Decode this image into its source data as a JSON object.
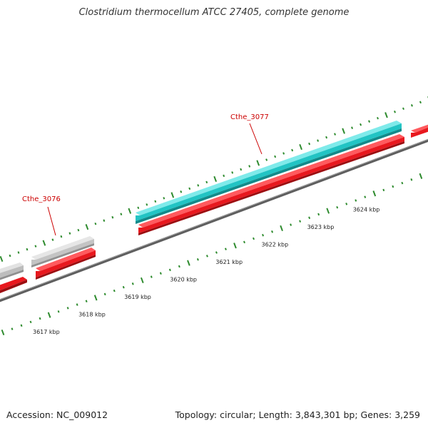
{
  "header": {
    "title": "Clostridium thermocellum ATCC 27405, complete genome"
  },
  "footer": {
    "accession": "Accession: NC_009012",
    "meta": "Topology: circular; Length: 3,843,301 bp; Genes: 3,259"
  },
  "colors": {
    "backbone": "#7f7f7f",
    "cds_forward": "#e8181e",
    "gene_forward": "#c8c8c8",
    "gene_highlight": "#22c4c4",
    "tick_green": "#2e8b2e",
    "label_red": "#cc0000"
  },
  "scale": {
    "unit": "kbp",
    "ticks": [
      {
        "kbp": 3617,
        "label": "3617 kbp"
      },
      {
        "kbp": 3618,
        "label": "3618 kbp"
      },
      {
        "kbp": 3619,
        "label": "3619 kbp"
      },
      {
        "kbp": 3620,
        "label": "3620 kbp"
      },
      {
        "kbp": 3621,
        "label": "3621 kbp"
      },
      {
        "kbp": 3622,
        "label": "3622 kbp"
      },
      {
        "kbp": 3623,
        "label": "3623 kbp"
      },
      {
        "kbp": 3624,
        "label": "3624 kbp"
      }
    ]
  },
  "genes": [
    {
      "label": "Cthe_3076",
      "track": "grey",
      "arrow": "right"
    },
    {
      "label": "Cthe_3077",
      "track": "cyan",
      "arrow": "right"
    }
  ]
}
